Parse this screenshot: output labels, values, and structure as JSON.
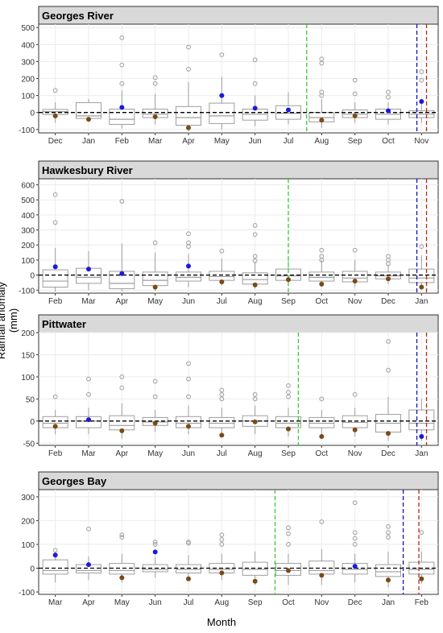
{
  "labels": {
    "ylabel": "Rainfall anomaly (mm)",
    "xlabel": "Month"
  },
  "colors": {
    "box": "#9e9e9e",
    "outlier": "#9e9e9e",
    "blue_point": "#1a1adb",
    "brown_point": "#7a4a16",
    "green_line": "#33cc33",
    "blue_line": "#1111bb",
    "red_line": "#b02a1a",
    "strip": "#d9d9d9",
    "grid": "#ebebeb"
  },
  "chart_data": [
    {
      "type": "box",
      "title": "Georges River",
      "categories": [
        "Dec",
        "Jan",
        "Feb",
        "Mar",
        "Apr",
        "May",
        "Jun",
        "Jul",
        "Aug",
        "Sep",
        "Oct",
        "Nov"
      ],
      "ylim": [
        -120,
        520
      ],
      "yticks": [
        -100,
        0,
        100,
        200,
        300,
        400,
        500
      ],
      "boxes": [
        {
          "q1": -12,
          "median": 5,
          "q3": 18,
          "wl": -60,
          "wh": 60
        },
        {
          "q1": -35,
          "median": -20,
          "q3": 58,
          "wl": -55,
          "wh": 80
        },
        {
          "q1": -70,
          "median": -40,
          "q3": 20,
          "wl": -95,
          "wh": 130
        },
        {
          "q1": -30,
          "median": -10,
          "q3": 20,
          "wl": -70,
          "wh": 110
        },
        {
          "q1": -75,
          "median": -30,
          "q3": 35,
          "wl": -110,
          "wh": 180
        },
        {
          "q1": -65,
          "median": -20,
          "q3": 55,
          "wl": -100,
          "wh": 210
        },
        {
          "q1": -45,
          "median": -10,
          "q3": 20,
          "wl": -80,
          "wh": 100
        },
        {
          "q1": -40,
          "median": -5,
          "q3": 40,
          "wl": -70,
          "wh": 120
        },
        {
          "q1": -55,
          "median": -30,
          "q3": 0,
          "wl": -90,
          "wh": 80
        },
        {
          "q1": -30,
          "median": -10,
          "q3": 15,
          "wl": -60,
          "wh": 60
        },
        {
          "q1": -40,
          "median": -10,
          "q3": 20,
          "wl": -70,
          "wh": 60
        },
        {
          "q1": -30,
          "median": -10,
          "q3": 10,
          "wl": -60,
          "wh": 50
        }
      ],
      "outliers": [
        [
          0,
          130
        ],
        [
          2,
          170
        ],
        [
          2,
          280
        ],
        [
          2,
          440
        ],
        [
          3,
          170
        ],
        [
          3,
          205
        ],
        [
          4,
          255
        ],
        [
          4,
          385
        ],
        [
          5,
          340
        ],
        [
          6,
          170
        ],
        [
          6,
          310
        ],
        [
          8,
          100
        ],
        [
          8,
          120
        ],
        [
          8,
          290
        ],
        [
          8,
          315
        ],
        [
          9,
          110
        ],
        [
          9,
          190
        ],
        [
          10,
          90
        ],
        [
          10,
          120
        ],
        [
          11,
          190
        ],
        [
          11,
          240
        ]
      ],
      "blue_points": [
        [
          2,
          30
        ],
        [
          5,
          100
        ],
        [
          6,
          25
        ],
        [
          7,
          15
        ],
        [
          10,
          10
        ],
        [
          11,
          65
        ]
      ],
      "brown_points": [
        [
          0,
          -20
        ],
        [
          1,
          -40
        ],
        [
          3,
          -25
        ],
        [
          4,
          -90
        ],
        [
          8,
          -45
        ],
        [
          9,
          -20
        ]
      ],
      "vlines": [
        {
          "color": "green",
          "pos": 7.55
        },
        {
          "color": "blue",
          "pos": 10.86
        },
        {
          "color": "red",
          "pos": 11.15
        }
      ]
    },
    {
      "type": "box",
      "title": "Hawkesbury River",
      "categories": [
        "Feb",
        "Mar",
        "Apr",
        "May",
        "Jun",
        "Jul",
        "Aug",
        "Sep",
        "Oct",
        "Nov",
        "Dec",
        "Jan"
      ],
      "ylim": [
        -120,
        640
      ],
      "yticks": [
        -100,
        0,
        100,
        200,
        300,
        400,
        500,
        600
      ],
      "boxes": [
        {
          "q1": -80,
          "median": -40,
          "q3": 35,
          "wl": -110,
          "wh": 180
        },
        {
          "q1": -55,
          "median": -15,
          "q3": 45,
          "wl": -100,
          "wh": 160
        },
        {
          "q1": -90,
          "median": -55,
          "q3": 25,
          "wl": -110,
          "wh": 210
        },
        {
          "q1": -70,
          "median": -35,
          "q3": 20,
          "wl": -105,
          "wh": 150
        },
        {
          "q1": -40,
          "median": -15,
          "q3": 20,
          "wl": -80,
          "wh": 140
        },
        {
          "q1": -35,
          "median": -10,
          "q3": 25,
          "wl": -70,
          "wh": 110
        },
        {
          "q1": -60,
          "median": -30,
          "q3": 15,
          "wl": -90,
          "wh": 90
        },
        {
          "q1": -35,
          "median": -5,
          "q3": 40,
          "wl": -70,
          "wh": 120
        },
        {
          "q1": -40,
          "median": -15,
          "q3": 20,
          "wl": -80,
          "wh": 100
        },
        {
          "q1": -45,
          "median": -20,
          "q3": 25,
          "wl": -80,
          "wh": 100
        },
        {
          "q1": -25,
          "median": -5,
          "q3": 20,
          "wl": -60,
          "wh": 70
        },
        {
          "q1": -50,
          "median": -20,
          "q3": 40,
          "wl": -90,
          "wh": 130
        }
      ],
      "outliers": [
        [
          0,
          350
        ],
        [
          0,
          535
        ],
        [
          2,
          490
        ],
        [
          3,
          215
        ],
        [
          4,
          190
        ],
        [
          4,
          215
        ],
        [
          4,
          275
        ],
        [
          5,
          160
        ],
        [
          6,
          95
        ],
        [
          6,
          125
        ],
        [
          6,
          270
        ],
        [
          6,
          330
        ],
        [
          8,
          100
        ],
        [
          8,
          125
        ],
        [
          8,
          165
        ],
        [
          9,
          165
        ],
        [
          10,
          75
        ],
        [
          10,
          100
        ],
        [
          10,
          125
        ],
        [
          11,
          190
        ]
      ],
      "blue_points": [
        [
          0,
          55
        ],
        [
          1,
          40
        ],
        [
          2,
          10
        ],
        [
          4,
          60
        ]
      ],
      "brown_points": [
        [
          3,
          -80
        ],
        [
          5,
          -45
        ],
        [
          6,
          -65
        ],
        [
          7,
          -30
        ],
        [
          8,
          -60
        ],
        [
          9,
          -40
        ],
        [
          10,
          -25
        ],
        [
          11,
          -80
        ]
      ],
      "vlines": [
        {
          "color": "green",
          "pos": 7.0
        },
        {
          "color": "blue",
          "pos": 10.86
        },
        {
          "color": "red",
          "pos": 11.15
        }
      ]
    },
    {
      "type": "box",
      "title": "Pittwater",
      "categories": [
        "Feb",
        "Mar",
        "Apr",
        "May",
        "Jun",
        "Jul",
        "Aug",
        "Sep",
        "Oct",
        "Nov",
        "Dec",
        "Jan"
      ],
      "ylim": [
        -55,
        200
      ],
      "yticks": [
        -50,
        0,
        50,
        100,
        150,
        200
      ],
      "boxes": [
        {
          "q1": -15,
          "median": -5,
          "q3": 10,
          "wl": -30,
          "wh": 25
        },
        {
          "q1": -15,
          "median": 0,
          "q3": 10,
          "wl": -30,
          "wh": 30
        },
        {
          "q1": -20,
          "median": -10,
          "q3": 12,
          "wl": -40,
          "wh": 40
        },
        {
          "q1": -10,
          "median": -2,
          "q3": 8,
          "wl": -25,
          "wh": 25
        },
        {
          "q1": -15,
          "median": -5,
          "q3": 10,
          "wl": -30,
          "wh": 35
        },
        {
          "q1": -15,
          "median": -5,
          "q3": 8,
          "wl": -30,
          "wh": 30
        },
        {
          "q1": -12,
          "median": 0,
          "q3": 12,
          "wl": -30,
          "wh": 35
        },
        {
          "q1": -15,
          "median": -5,
          "q3": 10,
          "wl": -35,
          "wh": 30
        },
        {
          "q1": -15,
          "median": -5,
          "q3": 8,
          "wl": -35,
          "wh": 25
        },
        {
          "q1": -15,
          "median": -3,
          "q3": 12,
          "wl": -35,
          "wh": 30
        },
        {
          "q1": -25,
          "median": -5,
          "q3": 15,
          "wl": -45,
          "wh": 55
        },
        {
          "q1": -20,
          "median": -5,
          "q3": 25,
          "wl": -45,
          "wh": 50
        }
      ],
      "outliers": [
        [
          0,
          55
        ],
        [
          1,
          60
        ],
        [
          1,
          95
        ],
        [
          2,
          75
        ],
        [
          2,
          100
        ],
        [
          3,
          55
        ],
        [
          3,
          90
        ],
        [
          4,
          55
        ],
        [
          4,
          95
        ],
        [
          4,
          130
        ],
        [
          5,
          50
        ],
        [
          5,
          60
        ],
        [
          5,
          70
        ],
        [
          6,
          50
        ],
        [
          6,
          60
        ],
        [
          7,
          55
        ],
        [
          7,
          65
        ],
        [
          7,
          80
        ],
        [
          8,
          50
        ],
        [
          9,
          60
        ],
        [
          10,
          115
        ],
        [
          10,
          180
        ]
      ],
      "blue_points": [
        [
          1,
          3
        ],
        [
          11,
          -35
        ]
      ],
      "brown_points": [
        [
          0,
          -12
        ],
        [
          2,
          -22
        ],
        [
          3,
          -5
        ],
        [
          4,
          -12
        ],
        [
          5,
          -32
        ],
        [
          6,
          -2
        ],
        [
          7,
          -18
        ],
        [
          8,
          -35
        ],
        [
          9,
          -20
        ],
        [
          10,
          -28
        ]
      ],
      "vlines": [
        {
          "color": "green",
          "pos": 7.3
        },
        {
          "color": "blue",
          "pos": 10.86
        },
        {
          "color": "red",
          "pos": 11.15
        }
      ]
    },
    {
      "type": "box",
      "title": "Georges Bay",
      "categories": [
        "Mar",
        "Apr",
        "May",
        "Jun",
        "Jul",
        "Aug",
        "Sep",
        "Oct",
        "Nov",
        "Dec",
        "Jan",
        "Feb"
      ],
      "ylim": [
        -110,
        330
      ],
      "yticks": [
        -100,
        0,
        100,
        200,
        300
      ],
      "boxes": [
        {
          "q1": -25,
          "median": -10,
          "q3": 35,
          "wl": -60,
          "wh": 70
        },
        {
          "q1": -20,
          "median": -10,
          "q3": 15,
          "wl": -50,
          "wh": 50
        },
        {
          "q1": -25,
          "median": -10,
          "q3": 20,
          "wl": -60,
          "wh": 60
        },
        {
          "q1": -15,
          "median": -5,
          "q3": 15,
          "wl": -40,
          "wh": 50
        },
        {
          "q1": -20,
          "median": -5,
          "q3": 15,
          "wl": -50,
          "wh": 55
        },
        {
          "q1": -20,
          "median": -5,
          "q3": 20,
          "wl": -50,
          "wh": 60
        },
        {
          "q1": -30,
          "median": -5,
          "q3": 25,
          "wl": -70,
          "wh": 70
        },
        {
          "q1": -30,
          "median": -10,
          "q3": 20,
          "wl": -70,
          "wh": 60
        },
        {
          "q1": -25,
          "median": -10,
          "q3": 30,
          "wl": -70,
          "wh": 80
        },
        {
          "q1": -25,
          "median": -5,
          "q3": 20,
          "wl": -60,
          "wh": 60
        },
        {
          "q1": -35,
          "median": -15,
          "q3": 15,
          "wl": -80,
          "wh": 70
        },
        {
          "q1": -25,
          "median": -5,
          "q3": 25,
          "wl": -65,
          "wh": 70
        }
      ],
      "outliers": [
        [
          0,
          75
        ],
        [
          1,
          165
        ],
        [
          2,
          130
        ],
        [
          2,
          140
        ],
        [
          3,
          100
        ],
        [
          3,
          110
        ],
        [
          4,
          105
        ],
        [
          4,
          110
        ],
        [
          5,
          100
        ],
        [
          5,
          120
        ],
        [
          5,
          140
        ],
        [
          7,
          100
        ],
        [
          7,
          145
        ],
        [
          7,
          170
        ],
        [
          8,
          195
        ],
        [
          9,
          100
        ],
        [
          9,
          125
        ],
        [
          9,
          150
        ],
        [
          9,
          275
        ],
        [
          10,
          130
        ],
        [
          10,
          150
        ],
        [
          10,
          175
        ],
        [
          11,
          150
        ]
      ],
      "blue_points": [
        [
          0,
          55
        ],
        [
          1,
          15
        ],
        [
          3,
          68
        ],
        [
          9,
          8
        ]
      ],
      "brown_points": [
        [
          2,
          -40
        ],
        [
          4,
          -45
        ],
        [
          5,
          -20
        ],
        [
          6,
          -55
        ],
        [
          7,
          -10
        ],
        [
          8,
          -30
        ],
        [
          10,
          -50
        ],
        [
          11,
          -45
        ]
      ],
      "vlines": [
        {
          "color": "green",
          "pos": 6.6
        },
        {
          "color": "blue",
          "pos": 10.45
        },
        {
          "color": "red",
          "pos": 10.92
        }
      ]
    }
  ]
}
